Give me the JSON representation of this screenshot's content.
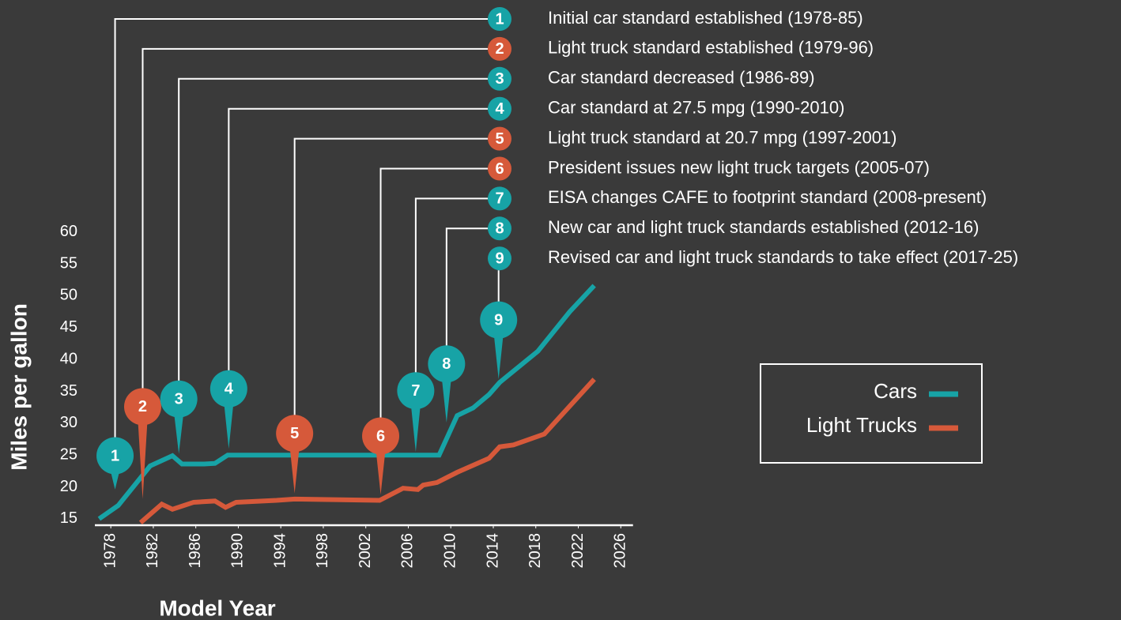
{
  "chart_data": {
    "type": "line",
    "xlabel": "Model Year",
    "ylabel": "Miles per gallon",
    "xlim": [
      1976.5,
      2027
    ],
    "ylim": [
      14,
      62
    ],
    "xticks": [
      1978,
      1982,
      1986,
      1990,
      1994,
      1998,
      2002,
      2006,
      2010,
      2014,
      2018,
      2022,
      2026
    ],
    "yticks": [
      15,
      20,
      25,
      30,
      35,
      40,
      45,
      50,
      55,
      60
    ],
    "series": [
      {
        "name": "Cars",
        "color": "#17a3a6",
        "x": [
          1976.9,
          1978.7,
          1981.7,
          1983.8,
          1984.7,
          1986.8,
          1987.8,
          1989.0,
          2008.9,
          2010.6,
          2012.1,
          2013.6,
          2014.6,
          2018.2,
          2021.2,
          2023.5
        ],
        "values": [
          15,
          17.1,
          23.3,
          24.9,
          23.6,
          23.6,
          23.7,
          25,
          25,
          31.2,
          32.4,
          34.5,
          36.4,
          41.3,
          47.5,
          51.6
        ]
      },
      {
        "name": "Light Trucks",
        "color": "#d6593a",
        "x": [
          1980.8,
          1982.8,
          1983.8,
          1985.8,
          1987.8,
          1988.8,
          1989.8,
          1993.6,
          1995.3,
          2003.3,
          2005.5,
          2006.9,
          2007.4,
          2008.7,
          2010.6,
          2013.6,
          2014.6,
          2015.9,
          2018.8,
          2023.5
        ],
        "values": [
          14.4,
          17.3,
          16.5,
          17.6,
          17.8,
          16.8,
          17.6,
          17.9,
          18.1,
          17.9,
          19.8,
          19.6,
          20.3,
          20.7,
          22.3,
          24.5,
          26.3,
          26.6,
          28.3,
          36.9
        ]
      }
    ],
    "annotations": [
      {
        "label": "1",
        "text": "Initial car standard established (1978-85)",
        "color": "#17a3a6",
        "x": 1978.4,
        "y": 24.9,
        "tip": 19.6
      },
      {
        "label": "2",
        "text": "Light truck standard established (1979-96)",
        "color": "#d6593a",
        "x": 1981.0,
        "y": 32.6,
        "tip": 18.1
      },
      {
        "label": "3",
        "text": "Car standard decreased (1986-89)",
        "color": "#17a3a6",
        "x": 1984.4,
        "y": 33.8,
        "tip": 25.2
      },
      {
        "label": "4",
        "text": "Car standard at 27.5 mpg (1990-2010)",
        "color": "#17a3a6",
        "x": 1989.1,
        "y": 35.4,
        "tip": 26.0
      },
      {
        "label": "5",
        "text": "Light truck standard at 20.7 mpg (1997-2001)",
        "color": "#d6593a",
        "x": 1995.3,
        "y": 28.4,
        "tip": 19.0
      },
      {
        "label": "6",
        "text": "President issues new light truck targets (2005-07)",
        "color": "#d6593a",
        "x": 2003.4,
        "y": 28.0,
        "tip": 18.8
      },
      {
        "label": "7",
        "text": "EISA changes CAFE to footprint standard (2008-present)",
        "color": "#17a3a6",
        "x": 2006.7,
        "y": 35.1,
        "tip": 25.5
      },
      {
        "label": "8",
        "text": "New car and light truck standards established (2012-16)",
        "color": "#17a3a6",
        "x": 2009.6,
        "y": 39.3,
        "tip": 30.1
      },
      {
        "label": "9",
        "text": "Revised car and light truck standards to take effect (2017-25)",
        "color": "#17a3a6",
        "x": 2014.5,
        "y": 46.2,
        "tip": 36.9
      }
    ]
  }
}
